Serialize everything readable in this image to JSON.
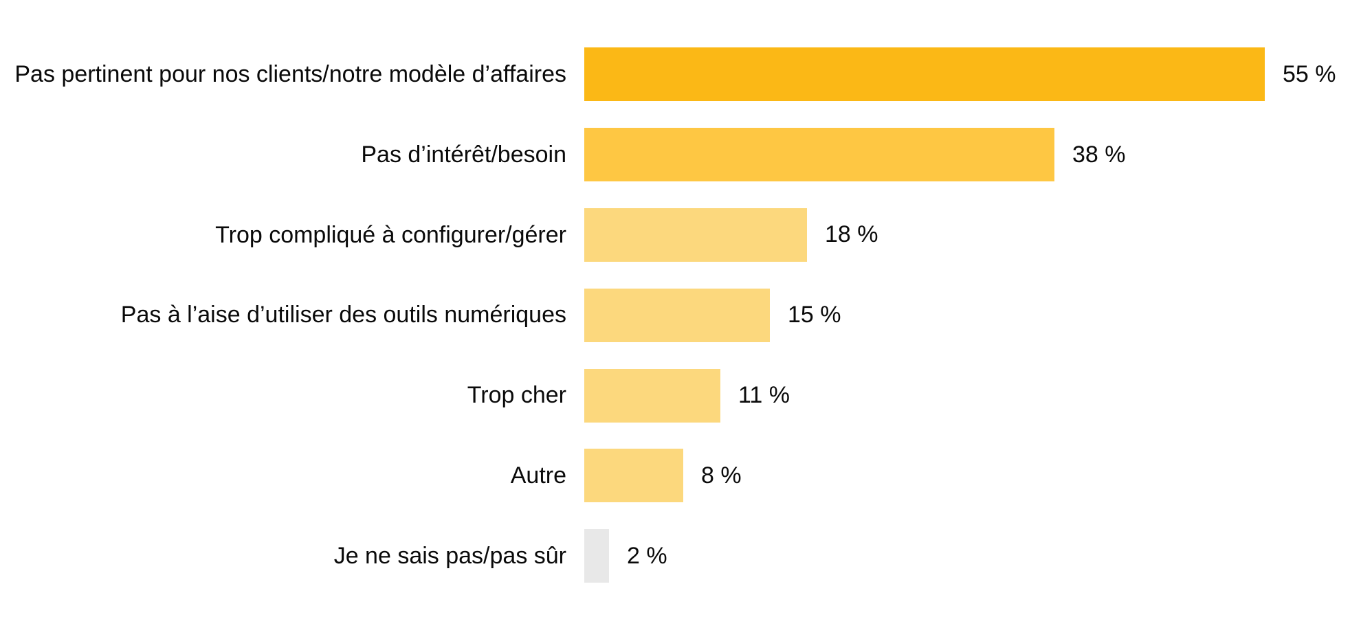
{
  "chart_data": {
    "type": "bar",
    "orientation": "horizontal",
    "title": "",
    "xlabel": "",
    "ylabel": "",
    "xlim": [
      0,
      60
    ],
    "grid": false,
    "legend": false,
    "background": "#FFFFFF",
    "categories": [
      "Pas pertinent pour nos clients/notre modèle d’affaires",
      "Pas d’intérêt/besoin",
      "Trop compliqué à configurer/gérer",
      "Pas à l’aise d’utiliser des outils numériques",
      "Trop cher",
      "Autre",
      "Je ne sais pas/pas sûr"
    ],
    "values": [
      55,
      38,
      18,
      15,
      11,
      8,
      2
    ],
    "value_labels": [
      "55 %",
      "38 %",
      "18 %",
      "15 %",
      "11 %",
      "8 %",
      "2 %"
    ],
    "bar_colors": [
      "#FBB816",
      "#FEC743",
      "#FCD87D",
      "#FCD87D",
      "#FCD87D",
      "#FCD87D",
      "#E8E8E8"
    ],
    "text_color": "#0A0A0A"
  }
}
